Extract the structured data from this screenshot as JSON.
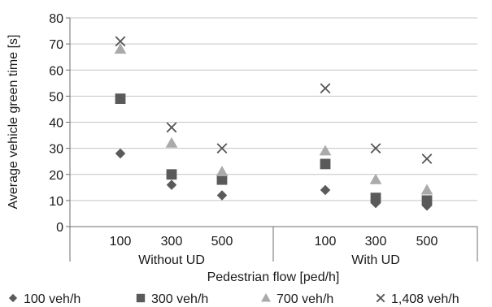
{
  "chart_data": {
    "type": "scatter",
    "ylabel": "Average vehicle green time [s]",
    "xlabel": "Pedestrian flow [ped/h]",
    "ylim": [
      0,
      80
    ],
    "yticks": [
      0,
      10,
      20,
      30,
      40,
      50,
      60,
      70,
      80
    ],
    "grid": "horizontal",
    "legend_position": "bottom",
    "groups": [
      {
        "label": "Without UD",
        "categories": [
          "100",
          "300",
          "500"
        ]
      },
      {
        "label": "With UD",
        "categories": [
          "100",
          "300",
          "500"
        ]
      }
    ],
    "series": [
      {
        "name": "100 veh/h",
        "marker": "diamond",
        "color": "#5a5a5a",
        "values": [
          28,
          16,
          12,
          14,
          9,
          8
        ]
      },
      {
        "name": "300 veh/h",
        "marker": "square",
        "color": "#5a5a5a",
        "values": [
          49,
          20,
          18,
          24,
          11,
          10
        ]
      },
      {
        "name": "700 veh/h",
        "marker": "triangle",
        "color": "#aaaaaa",
        "values": [
          68,
          32,
          21,
          29,
          18,
          14
        ]
      },
      {
        "name": "1,408 veh/h",
        "marker": "x",
        "color": "#555555",
        "values": [
          71,
          38,
          30,
          53,
          30,
          26
        ]
      }
    ]
  }
}
